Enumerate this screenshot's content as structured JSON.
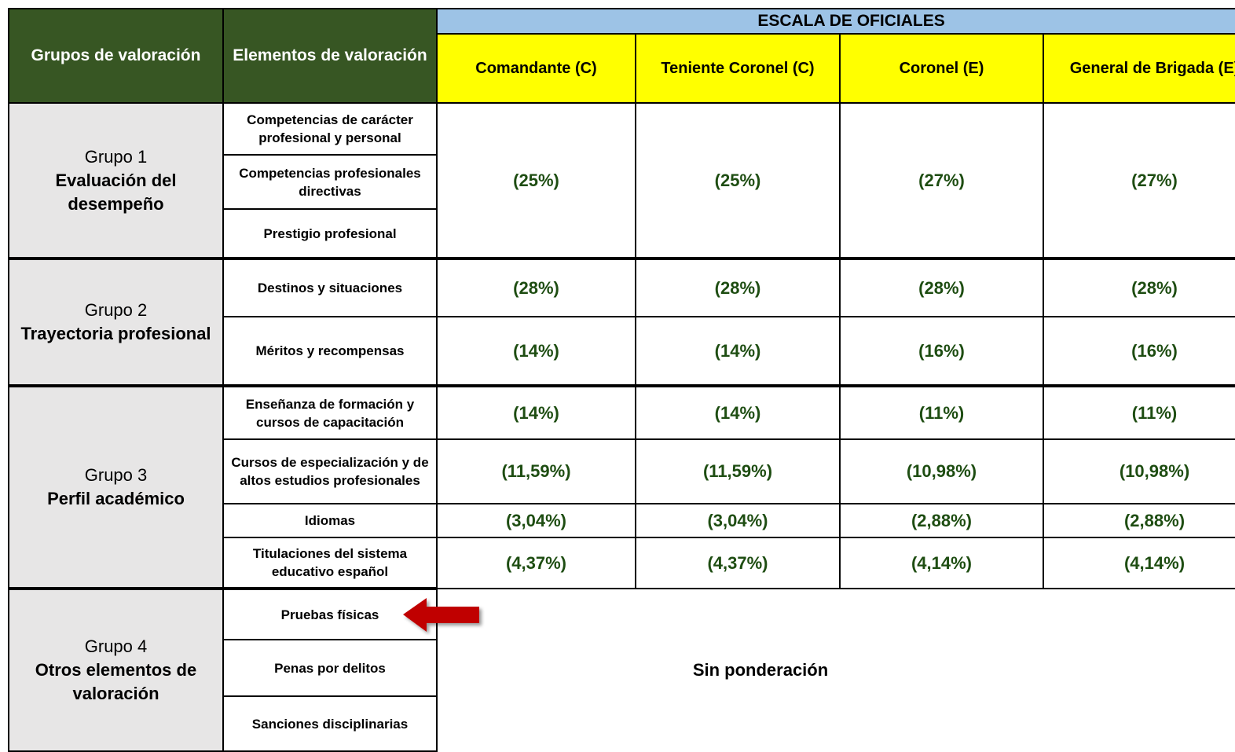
{
  "header": {
    "group_col": "Grupos de valoración",
    "element_col": "Elementos de valoración",
    "scale": "ESCALA DE OFICIALES",
    "ranks": [
      "Comandante (C)",
      "Teniente Coronel (C)",
      "Coronel (E)",
      "General de Brigada (E)"
    ]
  },
  "groups": [
    {
      "number": "Grupo 1",
      "name": "Evaluación del desempeño",
      "elements": [
        "Competencias de carácter profesional y personal",
        "Competencias profesionales directivas",
        "Prestigio profesional"
      ],
      "values": [
        "(25%)",
        "(25%)",
        "(27%)",
        "(27%)"
      ]
    },
    {
      "number": "Grupo 2",
      "name": "Trayectoria profesional",
      "rows": [
        {
          "element": "Destinos y situaciones",
          "values": [
            "(28%)",
            "(28%)",
            "(28%)",
            "(28%)"
          ]
        },
        {
          "element": "Méritos y recompensas",
          "values": [
            "(14%)",
            "(14%)",
            "(16%)",
            "(16%)"
          ]
        }
      ]
    },
    {
      "number": "Grupo 3",
      "name": "Perfil académico",
      "rows": [
        {
          "element": "Enseñanza de formación y cursos de capacitación",
          "values": [
            "(14%)",
            "(14%)",
            "(11%)",
            "(11%)"
          ]
        },
        {
          "element": "Cursos de especialización y de altos estudios profesionales",
          "values": [
            "(11,59%)",
            "(11,59%)",
            "(10,98%)",
            "(10,98%)"
          ]
        },
        {
          "element": "Idiomas",
          "values": [
            "(3,04%)",
            "(3,04%)",
            "(2,88%)",
            "(2,88%)"
          ]
        },
        {
          "element": "Titulaciones del sistema educativo español",
          "values": [
            "(4,37%)",
            "(4,37%)",
            "(4,14%)",
            "(4,14%)"
          ]
        }
      ]
    },
    {
      "number": "Grupo 4",
      "name": "Otros elementos de valoración",
      "elements": [
        "Pruebas físicas",
        "Penas por delitos",
        "Sanciones disciplinarias"
      ],
      "note": "Sin ponderación"
    }
  ]
}
